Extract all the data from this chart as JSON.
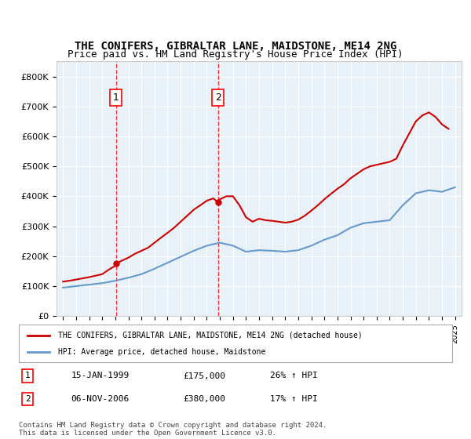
{
  "title": "THE CONIFERS, GIBRALTAR LANE, MAIDSTONE, ME14 2NG",
  "subtitle": "Price paid vs. HM Land Registry's House Price Index (HPI)",
  "background_color": "#ffffff",
  "plot_bg_color": "#e8f0f8",
  "grid_color": "#ffffff",
  "red_line_color": "#cc0000",
  "blue_line_color": "#6699cc",
  "ylim": [
    0,
    850000
  ],
  "yticks": [
    0,
    100000,
    200000,
    300000,
    400000,
    500000,
    600000,
    700000,
    800000
  ],
  "ytick_labels": [
    "£0",
    "£100K",
    "£200K",
    "£300K",
    "£400K",
    "£500K",
    "£600K",
    "£700K",
    "£800K"
  ],
  "legend_red": "THE CONIFERS, GIBRALTAR LANE, MAIDSTONE, ME14 2NG (detached house)",
  "legend_blue": "HPI: Average price, detached house, Maidstone",
  "transaction1_label": "1",
  "transaction1_date": "15-JAN-1999",
  "transaction1_price": "£175,000",
  "transaction1_hpi": "26% ↑ HPI",
  "transaction1_year": 1999.04,
  "transaction2_label": "2",
  "transaction2_date": "06-NOV-2006",
  "transaction2_price": "£380,000",
  "transaction2_hpi": "17% ↑ HPI",
  "transaction2_year": 2006.85,
  "copyright_text": "Contains HM Land Registry data © Crown copyright and database right 2024.\nThis data is licensed under the Open Government Licence v3.0.",
  "years": [
    1995,
    1996,
    1997,
    1998,
    1999,
    2000,
    2001,
    2002,
    2003,
    2004,
    2005,
    2006,
    2007,
    2008,
    2009,
    2010,
    2011,
    2012,
    2013,
    2014,
    2015,
    2016,
    2017,
    2018,
    2019,
    2020,
    2021,
    2022,
    2023,
    2024,
    2025
  ],
  "hpi_values": [
    95000,
    100000,
    105000,
    110000,
    118000,
    128000,
    140000,
    158000,
    178000,
    198000,
    218000,
    235000,
    245000,
    235000,
    215000,
    220000,
    218000,
    215000,
    220000,
    235000,
    255000,
    270000,
    295000,
    310000,
    315000,
    320000,
    370000,
    410000,
    420000,
    415000,
    430000
  ],
  "red_years": [
    1995.0,
    1995.5,
    1996.0,
    1996.5,
    1997.0,
    1997.5,
    1998.0,
    1998.5,
    1999.0,
    1999.04,
    1999.5,
    2000.0,
    2000.5,
    2001.0,
    2001.5,
    2002.0,
    2002.5,
    2003.0,
    2003.5,
    2004.0,
    2004.5,
    2005.0,
    2005.5,
    2006.0,
    2006.5,
    2006.85,
    2007.0,
    2007.5,
    2008.0,
    2008.5,
    2009.0,
    2009.5,
    2010.0,
    2010.5,
    2011.0,
    2011.5,
    2012.0,
    2012.5,
    2013.0,
    2013.5,
    2014.0,
    2014.5,
    2015.0,
    2015.5,
    2016.0,
    2016.5,
    2017.0,
    2017.5,
    2018.0,
    2018.5,
    2019.0,
    2019.5,
    2020.0,
    2020.5,
    2021.0,
    2021.5,
    2022.0,
    2022.5,
    2023.0,
    2023.5,
    2024.0,
    2024.5
  ],
  "red_values": [
    115000,
    118000,
    122000,
    126000,
    130000,
    135000,
    140000,
    155000,
    168000,
    175000,
    185000,
    195000,
    208000,
    218000,
    228000,
    245000,
    262000,
    278000,
    295000,
    315000,
    335000,
    355000,
    370000,
    385000,
    393000,
    380000,
    390000,
    400000,
    400000,
    370000,
    330000,
    315000,
    325000,
    320000,
    318000,
    315000,
    312000,
    315000,
    322000,
    335000,
    352000,
    370000,
    390000,
    408000,
    425000,
    440000,
    460000,
    475000,
    490000,
    500000,
    505000,
    510000,
    515000,
    525000,
    570000,
    610000,
    650000,
    670000,
    680000,
    665000,
    640000,
    625000
  ],
  "xtick_years": [
    1995,
    1996,
    1997,
    1998,
    1999,
    2000,
    2001,
    2002,
    2003,
    2004,
    2005,
    2006,
    2007,
    2008,
    2009,
    2010,
    2011,
    2012,
    2013,
    2014,
    2015,
    2016,
    2017,
    2018,
    2019,
    2020,
    2021,
    2022,
    2023,
    2024,
    2025
  ]
}
